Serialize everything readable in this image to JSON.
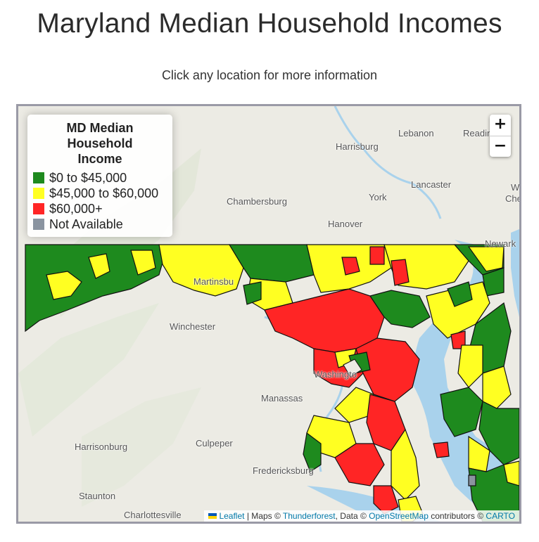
{
  "page": {
    "title": "Maryland Median Household Incomes",
    "subtitle": "Click any location for more information"
  },
  "legend": {
    "title": "MD Median Household Income",
    "items": [
      {
        "label": "$0 to $45,000",
        "color": "#1e8a1e"
      },
      {
        "label": "$45,000 to $60,000",
        "color": "#ffff22"
      },
      {
        "label": "$60,000+",
        "color": "#ff2525"
      },
      {
        "label": "Not Available",
        "color": "#8a94a0"
      }
    ]
  },
  "zoom": {
    "in_label": "+",
    "out_label": "−"
  },
  "map_labels": [
    "Lebanon",
    "Readin",
    "Harrisburg",
    "Chambersburg",
    "York",
    "Lancaster",
    "Hanover",
    "Martinsbu",
    "Winchester",
    "Washingto",
    "Manassas",
    "Culpeper",
    "Harrisonburg",
    "Fredericksburg",
    "Staunton",
    "Charlottesville",
    "Newark",
    "Wi",
    "Che"
  ],
  "attribution": {
    "leaflet": "Leaflet",
    "sep1": " | Maps © ",
    "thunderforest": "Thunderforest",
    "sep2": ", Data © ",
    "osm": "OpenStreetMap",
    "sep3": " contributors © ",
    "carto": "CARTO"
  },
  "colors": {
    "water": "#a9d2ec",
    "land": "#ecebe4",
    "border": "#111111",
    "flag_blue": "#0057b7",
    "flag_yellow": "#ffd500"
  }
}
